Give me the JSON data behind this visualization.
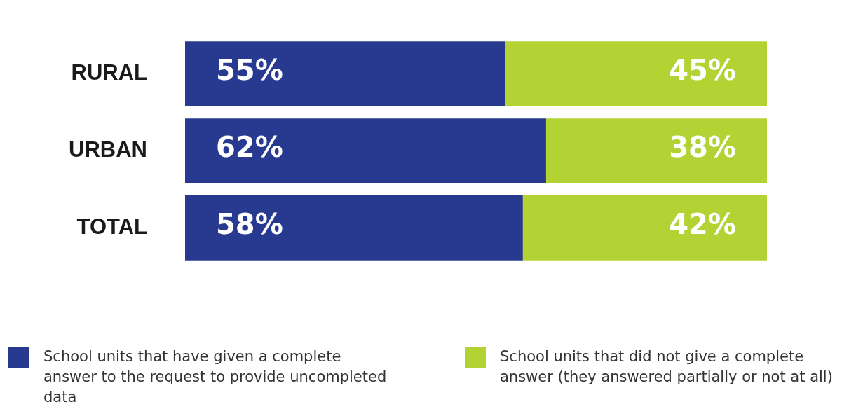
{
  "chart_data": {
    "type": "bar",
    "orientation": "horizontal",
    "stacked": true,
    "categories": [
      "RURAL",
      "URBAN",
      "TOTAL"
    ],
    "series": [
      {
        "name": "School units that have given a complete answer to the request to provide uncompleted data",
        "color": "#283a8f",
        "values": [
          55,
          62,
          58
        ],
        "value_labels": [
          "55%",
          "62%",
          "58%"
        ]
      },
      {
        "name": "School units that did not give a complete answer (they answered partially or not at all)",
        "color": "#b3d234",
        "values": [
          45,
          38,
          42
        ],
        "value_labels": [
          "45%",
          "38%",
          "42%"
        ]
      }
    ],
    "xlim": [
      0,
      100
    ],
    "tick_labels": "y",
    "legend": "bottom"
  }
}
